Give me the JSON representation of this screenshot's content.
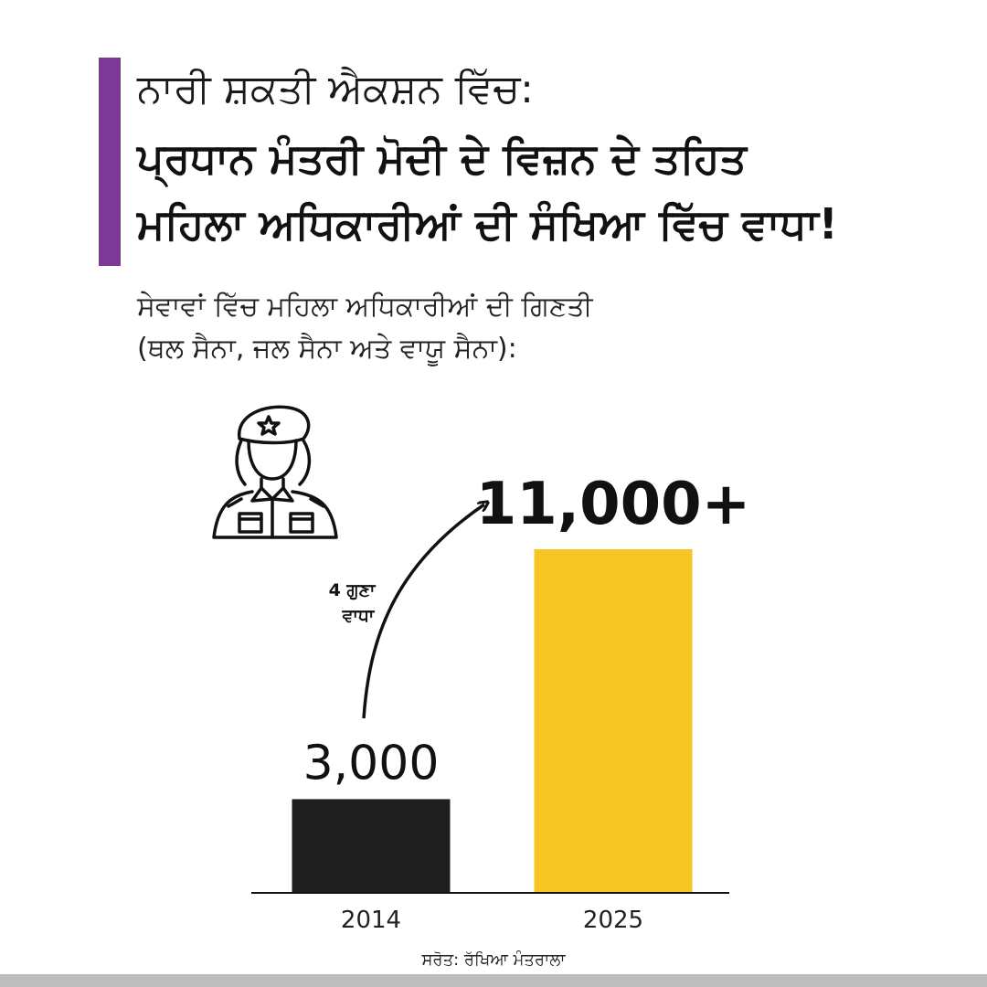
{
  "header": {
    "line1": "ਨਾਰੀ ਸ਼ਕਤੀ ਐਕਸ਼ਨ ਵਿੱਚ:",
    "line2": "ਪ੍ਰਧਾਨ ਮੰਤਰੀ ਮੋਦੀ ਦੇ ਵਿਜ਼ਨ ਦੇ ਤਹਿਤ",
    "line3": "ਮਹਿਲਾ ਅਧਿਕਾਰੀਆਂ ਦੀ ਸੰਖਿਆ ਵਿੱਚ ਵਾਧਾ!"
  },
  "subtitle": {
    "line1": "ਸੇਵਾਵਾਂ ਵਿੱਚ ਮਹਿਲਾ ਅਧਿਕਾਰੀਆਂ ਦੀ ਗਿਣਤੀ",
    "line2": "(ਥਲ ਸੈਨਾ, ਜਲ ਸੈਨਾ ਅਤੇ ਵਾਯੂ ਸੈਨਾ):"
  },
  "icons": {
    "soldier": "female-officer-icon",
    "arrow": "growth-arrow-icon"
  },
  "colors": {
    "accent": "#7B3A96",
    "bar_2014": "#1E1E1E",
    "bar_2025": "#F5C623",
    "text": "#111111"
  },
  "chart_data": {
    "type": "bar",
    "categories": [
      "2014",
      "2025"
    ],
    "values": [
      3000,
      11000
    ],
    "data_labels": [
      "3,000",
      "11,000+"
    ],
    "annotation": {
      "line1": "4 ਗੁਣਾ",
      "line2": "ਵਾਧਾ"
    },
    "title": "",
    "xlabel": "",
    "ylabel": "",
    "ylim": [
      0,
      11000
    ],
    "grid": false
  },
  "source": "ਸਰੋਤ: ਰੱਖਿਆ ਮੰਤਰਾਲਾ"
}
